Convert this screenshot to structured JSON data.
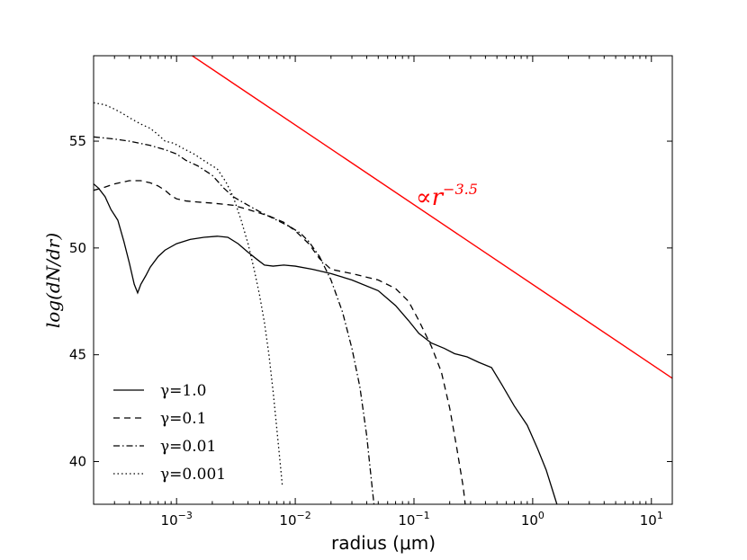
{
  "chart_data": {
    "type": "line",
    "xlabel": "radius (μm)",
    "ylabel": "log(dN/dr)",
    "x_scale": "log",
    "xlim": [
      0.0002,
      15
    ],
    "ylim": [
      38,
      59
    ],
    "y_ticks": [
      40,
      45,
      50,
      55
    ],
    "x_ticks": [
      {
        "value": 0.001,
        "mant": "10",
        "exp": "-3"
      },
      {
        "value": 0.01,
        "mant": "10",
        "exp": "-2"
      },
      {
        "value": 0.1,
        "mant": "10",
        "exp": "-1"
      },
      {
        "value": 1,
        "mant": "10",
        "exp": "0"
      },
      {
        "value": 10,
        "mant": "10",
        "exp": "1"
      }
    ],
    "grid": false,
    "legend_position": "lower-left",
    "annotation": {
      "text": "∝r",
      "exp": "−3.5",
      "x": 0.11,
      "y": 52.3,
      "color": "#ff0000"
    },
    "series": [
      {
        "name": "γ=1.0",
        "style": "solid",
        "color": "#000000",
        "points": [
          [
            0.0002,
            53.0
          ],
          [
            0.00022,
            52.8
          ],
          [
            0.00025,
            52.4
          ],
          [
            0.00028,
            51.8
          ],
          [
            0.00032,
            51.3
          ],
          [
            0.00036,
            50.3
          ],
          [
            0.0004,
            49.3
          ],
          [
            0.00044,
            48.3
          ],
          [
            0.00047,
            47.9
          ],
          [
            0.0005,
            48.3
          ],
          [
            0.00055,
            48.7
          ],
          [
            0.0006,
            49.1
          ],
          [
            0.0007,
            49.6
          ],
          [
            0.0008,
            49.9
          ],
          [
            0.001,
            50.2
          ],
          [
            0.0013,
            50.4
          ],
          [
            0.0017,
            50.5
          ],
          [
            0.0022,
            50.55
          ],
          [
            0.0027,
            50.5
          ],
          [
            0.0033,
            50.2
          ],
          [
            0.004,
            49.8
          ],
          [
            0.0048,
            49.45
          ],
          [
            0.0055,
            49.2
          ],
          [
            0.0065,
            49.15
          ],
          [
            0.008,
            49.2
          ],
          [
            0.01,
            49.15
          ],
          [
            0.014,
            49.0
          ],
          [
            0.02,
            48.8
          ],
          [
            0.03,
            48.5
          ],
          [
            0.05,
            48.0
          ],
          [
            0.07,
            47.3
          ],
          [
            0.09,
            46.6
          ],
          [
            0.11,
            46.0
          ],
          [
            0.14,
            45.55
          ],
          [
            0.18,
            45.3
          ],
          [
            0.22,
            45.05
          ],
          [
            0.28,
            44.9
          ],
          [
            0.35,
            44.65
          ],
          [
            0.45,
            44.4
          ],
          [
            0.55,
            43.6
          ],
          [
            0.7,
            42.6
          ],
          [
            0.9,
            41.7
          ],
          [
            1.1,
            40.6
          ],
          [
            1.3,
            39.6
          ],
          [
            1.5,
            38.5
          ],
          [
            1.6,
            38.0
          ]
        ]
      },
      {
        "name": "γ=0.1",
        "style": "dashed",
        "color": "#000000",
        "points": [
          [
            0.0002,
            52.7
          ],
          [
            0.00025,
            52.85
          ],
          [
            0.0003,
            53.0
          ],
          [
            0.0004,
            53.15
          ],
          [
            0.0005,
            53.15
          ],
          [
            0.0006,
            53.05
          ],
          [
            0.0007,
            52.9
          ],
          [
            0.0008,
            52.7
          ],
          [
            0.0009,
            52.45
          ],
          [
            0.001,
            52.3
          ],
          [
            0.0012,
            52.2
          ],
          [
            0.0015,
            52.15
          ],
          [
            0.002,
            52.1
          ],
          [
            0.003,
            52.0
          ],
          [
            0.004,
            51.8
          ],
          [
            0.006,
            51.5
          ],
          [
            0.008,
            51.2
          ],
          [
            0.01,
            50.8
          ],
          [
            0.013,
            50.2
          ],
          [
            0.016,
            49.5
          ],
          [
            0.02,
            49.0
          ],
          [
            0.03,
            48.8
          ],
          [
            0.05,
            48.5
          ],
          [
            0.07,
            48.1
          ],
          [
            0.09,
            47.5
          ],
          [
            0.11,
            46.6
          ],
          [
            0.14,
            45.4
          ],
          [
            0.17,
            44.2
          ],
          [
            0.2,
            42.5
          ],
          [
            0.23,
            40.6
          ],
          [
            0.26,
            38.8
          ],
          [
            0.27,
            38.0
          ]
        ]
      },
      {
        "name": "γ=0.01",
        "style": "dashdot",
        "color": "#000000",
        "points": [
          [
            0.0002,
            55.2
          ],
          [
            0.0003,
            55.1
          ],
          [
            0.0004,
            55.0
          ],
          [
            0.0006,
            54.8
          ],
          [
            0.0008,
            54.6
          ],
          [
            0.001,
            54.4
          ],
          [
            0.0012,
            54.1
          ],
          [
            0.0015,
            53.85
          ],
          [
            0.002,
            53.4
          ],
          [
            0.0025,
            52.8
          ],
          [
            0.003,
            52.4
          ],
          [
            0.004,
            52.0
          ],
          [
            0.005,
            51.7
          ],
          [
            0.007,
            51.3
          ],
          [
            0.009,
            51.0
          ],
          [
            0.011,
            50.7
          ],
          [
            0.013,
            50.3
          ],
          [
            0.016,
            49.6
          ],
          [
            0.02,
            48.5
          ],
          [
            0.025,
            47.0
          ],
          [
            0.03,
            45.3
          ],
          [
            0.035,
            43.5
          ],
          [
            0.04,
            41.2
          ],
          [
            0.044,
            39.0
          ],
          [
            0.046,
            38.0
          ]
        ]
      },
      {
        "name": "γ=0.001",
        "style": "dotted",
        "color": "#000000",
        "points": [
          [
            0.0002,
            56.8
          ],
          [
            0.00025,
            56.7
          ],
          [
            0.0003,
            56.5
          ],
          [
            0.00035,
            56.3
          ],
          [
            0.0004,
            56.1
          ],
          [
            0.0005,
            55.8
          ],
          [
            0.0006,
            55.6
          ],
          [
            0.0007,
            55.3
          ],
          [
            0.0008,
            55.0
          ],
          [
            0.00095,
            54.9
          ],
          [
            0.0011,
            54.7
          ],
          [
            0.0014,
            54.4
          ],
          [
            0.0018,
            54.0
          ],
          [
            0.0022,
            53.7
          ],
          [
            0.0026,
            53.1
          ],
          [
            0.003,
            52.4
          ],
          [
            0.0035,
            51.3
          ],
          [
            0.004,
            50.2
          ],
          [
            0.0045,
            49.0
          ],
          [
            0.005,
            47.8
          ],
          [
            0.0055,
            46.5
          ],
          [
            0.006,
            45.0
          ],
          [
            0.0065,
            43.3
          ],
          [
            0.007,
            41.5
          ],
          [
            0.0075,
            39.8
          ],
          [
            0.0078,
            38.8
          ]
        ]
      },
      {
        "name": "",
        "style": "solid",
        "color": "#ff0000",
        "points": [
          [
            0.0002,
            62.1
          ],
          [
            15,
            43.9
          ]
        ]
      }
    ]
  }
}
